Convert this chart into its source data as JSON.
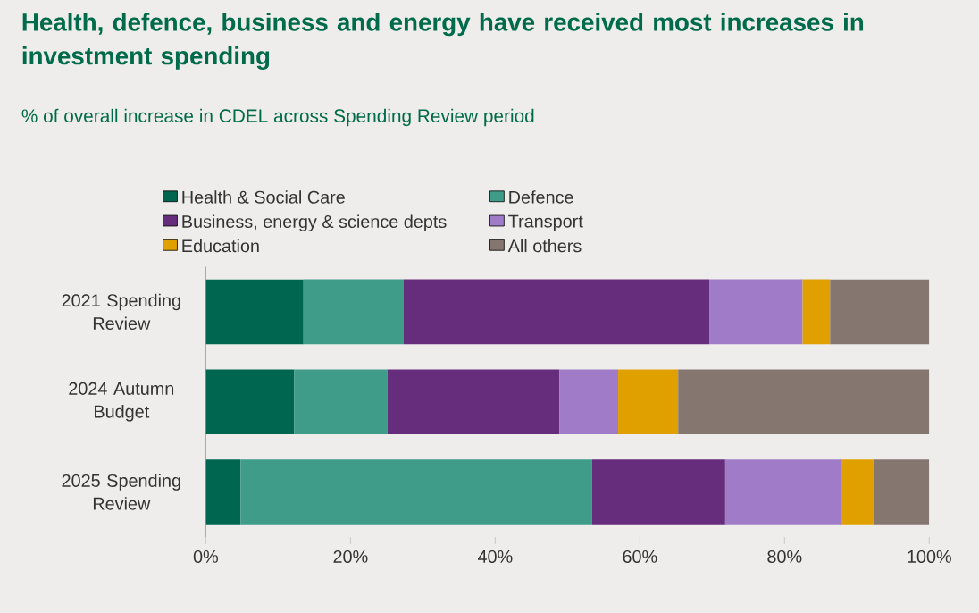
{
  "chart_data": {
    "type": "bar",
    "orientation": "horizontal",
    "stacked": true,
    "title": "Health, defence, business and energy have received most increases in investment spending",
    "subtitle": "% of overall increase in CDEL across Spending Review period",
    "categories": [
      "2021 Spending Review",
      "2024 Autumn Budget",
      "2025 Spending Review"
    ],
    "series": [
      {
        "name": "Health & Social Care",
        "color": "#00664f",
        "values": [
          13.5,
          12.2,
          4.8
        ]
      },
      {
        "name": "Defence",
        "color": "#3f9c89",
        "values": [
          13.8,
          12.9,
          48.6
        ]
      },
      {
        "name": "Business, energy & science depts",
        "color": "#662d7c",
        "values": [
          42.3,
          23.8,
          18.4
        ]
      },
      {
        "name": "Transport",
        "color": "#a07cc8",
        "values": [
          12.9,
          8.1,
          16.0
        ]
      },
      {
        "name": "Education",
        "color": "#e0a000",
        "values": [
          3.8,
          8.3,
          4.6
        ]
      },
      {
        "name": "All others",
        "color": "#857670",
        "values": [
          13.7,
          34.7,
          7.6
        ]
      }
    ],
    "xlim": [
      0,
      100
    ],
    "xticks": [
      {
        "value": 0,
        "label": "0%"
      },
      {
        "value": 20,
        "label": "20%"
      },
      {
        "value": 40,
        "label": "40%"
      },
      {
        "value": 60,
        "label": "60%"
      },
      {
        "value": 80,
        "label": "80%"
      },
      {
        "value": 100,
        "label": "100%"
      }
    ],
    "legend": "top"
  }
}
